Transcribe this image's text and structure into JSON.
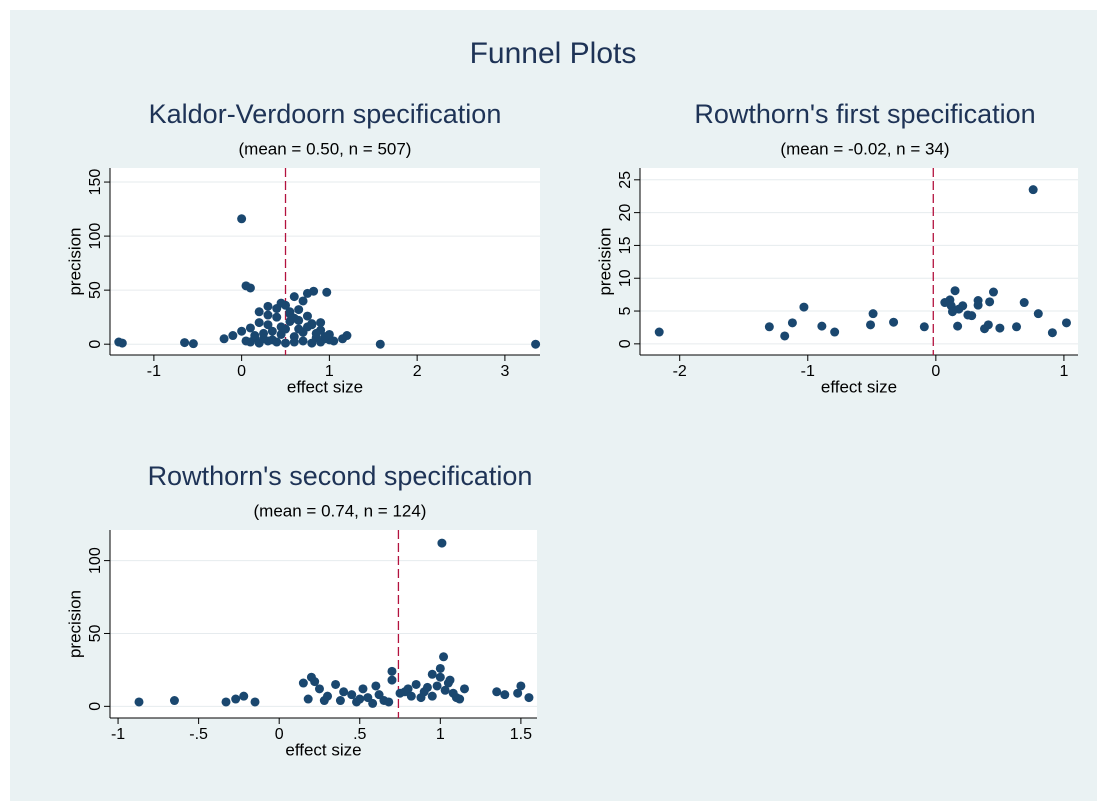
{
  "title": "Funnel Plots",
  "chart_data": [
    {
      "type": "scatter",
      "title": "Kaldor-Verdoorn specification",
      "subtitle": "(mean =  0.50, n = 507)",
      "xlabel": "effect size",
      "ylabel": "precision",
      "color": "#1a476f",
      "mean_line": 0.5,
      "mean_line_color": "#b3123e",
      "grid": true,
      "xlim": [
        -1.5,
        3.4
      ],
      "ylim": [
        -10,
        163
      ],
      "xticks": [
        -1,
        0,
        1,
        2,
        3
      ],
      "yticks": [
        0,
        50,
        100,
        150
      ],
      "x": [
        -1.4,
        -1.36,
        -0.65,
        -0.55,
        0.0,
        0.05,
        0.1,
        1.58,
        3.35,
        0.75,
        0.82,
        0.97,
        1.2,
        1.15,
        0.3,
        0.55,
        -0.2,
        -0.1,
        0.0,
        0.05,
        0.1,
        0.15,
        0.2,
        0.25,
        0.3,
        0.35,
        0.4,
        0.45,
        0.5,
        0.55,
        0.6,
        0.65,
        0.7,
        0.75,
        0.8,
        0.85,
        0.9,
        0.95,
        1.0,
        1.05,
        0.1,
        0.2,
        0.3,
        0.4,
        0.5,
        0.6,
        0.7,
        0.8,
        0.9,
        1.0,
        0.15,
        0.25,
        0.35,
        0.45,
        0.55,
        0.65,
        0.75,
        0.85,
        0.95,
        0.2,
        0.4,
        0.6,
        0.8,
        0.5,
        0.7,
        0.3,
        0.9,
        0.6,
        0.45,
        0.65
      ],
      "values": [
        2,
        1,
        1.5,
        0.5,
        116,
        54,
        52,
        0,
        0,
        47,
        49,
        48,
        8,
        5,
        35,
        30,
        5,
        8,
        12,
        3,
        15,
        6,
        20,
        10,
        18,
        4,
        25,
        9,
        14,
        28,
        7,
        22,
        11,
        16,
        19,
        6,
        13,
        5,
        9,
        3,
        2,
        1,
        3,
        2,
        1,
        2,
        3,
        1,
        2,
        4,
        8,
        5,
        12,
        16,
        21,
        14,
        26,
        10,
        7,
        30,
        33,
        24,
        18,
        36,
        40,
        27,
        20,
        44,
        38,
        32
      ]
    },
    {
      "type": "scatter",
      "title": "Rowthorn's first specification",
      "subtitle": "(mean = -0.02, n = 34)",
      "xlabel": "effect size",
      "ylabel": "precision",
      "color": "#1a476f",
      "mean_line": -0.02,
      "mean_line_color": "#b3123e",
      "grid": true,
      "xlim": [
        -2.31,
        1.11
      ],
      "ylim": [
        -1.7,
        26.8
      ],
      "xticks": [
        -2,
        -1,
        0,
        1
      ],
      "yticks": [
        0,
        5,
        10,
        15,
        20,
        25
      ],
      "x": [
        -2.16,
        -1.3,
        -1.12,
        -1.18,
        -1.03,
        -0.89,
        -0.79,
        -0.51,
        -0.49,
        -0.33,
        -0.09,
        0.11,
        0.12,
        0.15,
        0.13,
        0.18,
        0.17,
        0.21,
        0.28,
        0.33,
        0.33,
        0.42,
        0.45,
        0.38,
        0.41,
        0.69,
        0.63,
        0.76,
        0.8,
        0.91,
        1.02,
        0.25,
        0.5,
        0.07
      ],
      "values": [
        1.8,
        2.6,
        3.2,
        1.2,
        5.6,
        2.7,
        1.8,
        2.9,
        4.6,
        3.3,
        2.6,
        6.7,
        5.8,
        8.1,
        4.9,
        5.3,
        2.7,
        5.8,
        4.3,
        6.6,
        5.9,
        6.4,
        7.9,
        2.3,
        2.9,
        6.3,
        2.6,
        23.5,
        4.6,
        1.7,
        3.2,
        4.4,
        2.4,
        6.3
      ]
    },
    {
      "type": "scatter",
      "title": "Rowthorn's second specification",
      "subtitle": "(mean =  0.74, n = 124)",
      "xlabel": "effect size",
      "ylabel": "precision",
      "color": "#1a476f",
      "mean_line": 0.74,
      "mean_line_color": "#b3123e",
      "grid": true,
      "xlim": [
        -1.05,
        1.6
      ],
      "ylim": [
        -8,
        121
      ],
      "xticks": [
        -1,
        {
          "value": -0.5,
          "label": "-.5"
        },
        0,
        {
          "value": 0.5,
          "label": ".5"
        },
        1,
        1.5
      ],
      "yticks": [
        0,
        50,
        100
      ],
      "x": [
        -0.87,
        -0.65,
        -0.33,
        -0.27,
        -0.22,
        -0.15,
        1.01,
        1.02,
        1.0,
        0.7,
        0.2,
        0.15,
        0.25,
        0.3,
        0.35,
        0.4,
        0.45,
        0.5,
        0.55,
        0.6,
        0.65,
        0.7,
        0.75,
        0.8,
        0.85,
        0.9,
        0.95,
        1.0,
        1.05,
        1.1,
        1.15,
        1.35,
        1.4,
        1.5,
        1.55,
        0.18,
        0.22,
        0.38,
        0.48,
        0.52,
        0.62,
        0.68,
        0.78,
        0.88,
        0.98,
        1.08,
        1.12,
        0.95,
        1.03,
        1.48,
        0.28,
        0.58,
        0.82,
        0.92,
        1.06
      ],
      "values": [
        3,
        4,
        3,
        5,
        7,
        3,
        112,
        34,
        26,
        24,
        20,
        16,
        12,
        7,
        15,
        10,
        8,
        5,
        6,
        14,
        4,
        18,
        9,
        12,
        15,
        10,
        7,
        20,
        16,
        6,
        12,
        10,
        8,
        14,
        6,
        5,
        17,
        4,
        3,
        12,
        8,
        3,
        10,
        6,
        14,
        9,
        5,
        22,
        11,
        9,
        4,
        2,
        7,
        13,
        18
      ]
    }
  ]
}
